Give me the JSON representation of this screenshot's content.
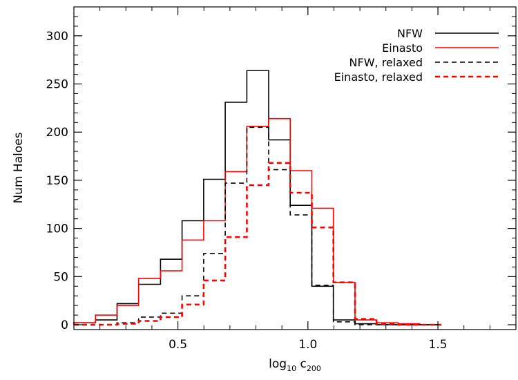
{
  "chart_data": {
    "type": "histogram",
    "title": "",
    "xlabel_base": "log",
    "xlabel_base_sub": "10",
    "xlabel_var": " c",
    "xlabel_var_sub": "200",
    "ylabel": "Num Haloes",
    "xlim": [
      0.1,
      1.8
    ],
    "ylim": [
      -5,
      330
    ],
    "x_ticks": [
      0.5,
      1.0,
      1.5
    ],
    "x_tick_labels": [
      "0.5",
      "1.0",
      "1.5"
    ],
    "y_ticks": [
      0,
      50,
      100,
      150,
      200,
      250,
      300
    ],
    "y_tick_labels": [
      "0",
      "50",
      "100",
      "150",
      "200",
      "250",
      "300"
    ],
    "grid": false,
    "legend_position": "top-right",
    "bin_edges": [
      0.1,
      0.183,
      0.266,
      0.349,
      0.433,
      0.516,
      0.599,
      0.682,
      0.765,
      0.849,
      0.932,
      1.015,
      1.098,
      1.181,
      1.264,
      1.347,
      1.43,
      1.513
    ],
    "series": [
      {
        "name": "NFW",
        "color": "#000000",
        "dashed": false,
        "values": [
          2,
          5,
          22,
          42,
          68,
          108,
          151,
          231,
          264,
          192,
          124,
          40,
          5,
          1,
          0,
          0,
          0
        ]
      },
      {
        "name": "Einasto",
        "color": "#ff0000",
        "dashed": false,
        "values": [
          2,
          10,
          20,
          48,
          56,
          88,
          108,
          159,
          206,
          214,
          160,
          121,
          44,
          5,
          2,
          1,
          0
        ]
      },
      {
        "name": "NFW, relaxed",
        "color": "#000000",
        "dashed": true,
        "values": [
          0,
          0,
          2,
          8,
          12,
          30,
          74,
          147,
          205,
          161,
          114,
          41,
          3,
          0,
          0,
          0,
          0
        ]
      },
      {
        "name": "Einasto, relaxed",
        "color": "#ff0000",
        "dashed": true,
        "values": [
          0,
          0,
          1,
          4,
          8,
          21,
          46,
          91,
          145,
          168,
          137,
          101,
          44,
          6,
          1,
          0,
          0
        ]
      }
    ]
  }
}
